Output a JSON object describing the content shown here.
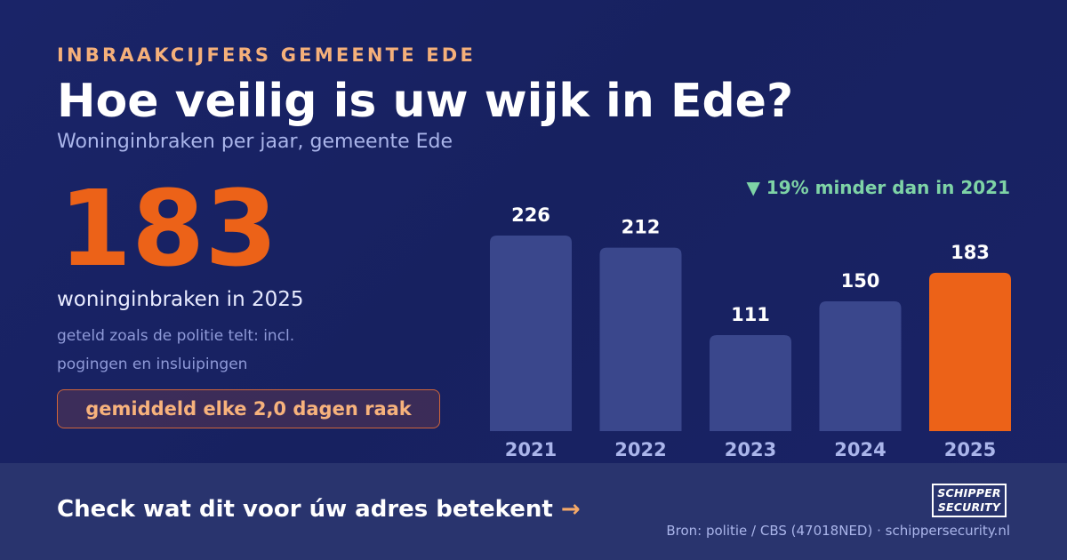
{
  "header": {
    "kicker": "INBRAAKCIJFERS GEMEENTE EDE",
    "title": "Hoe veilig is uw wijk in Ede?",
    "subtitle": "Woninginbraken per jaar, gemeente Ede"
  },
  "highlight": {
    "value": "183",
    "label": "woninginbraken in 2025",
    "note": "geteld zoals de politie telt: incl. pogingen en insluipingen",
    "badge": "gemiddeld elke 2,0 dagen raak"
  },
  "change_text": "▼ 19% minder dan in 2021",
  "chart_data": {
    "type": "bar",
    "categories": [
      "2021",
      "2022",
      "2023",
      "2024",
      "2025"
    ],
    "values": [
      226,
      212,
      111,
      150,
      183
    ],
    "highlight_index": 4,
    "ylim": [
      0,
      226
    ],
    "grid": false,
    "colors": {
      "bar": "#3a478c",
      "highlight": "#ec6218",
      "value_label": "#ffffff",
      "category_label": "#aab5ea"
    }
  },
  "footer": {
    "cta": "Check wat dit voor úw adres betekent",
    "cta_arrow": "→",
    "source": "Bron: politie / CBS (47018NED) · schippersecurity.nl",
    "logo_line1": "SCHIPPER",
    "logo_line2": "SECURITY"
  },
  "colors": {
    "accent": "#ec6218",
    "kicker": "#f5b07a",
    "positive": "#7ed3a6",
    "background": "#1a2468"
  }
}
